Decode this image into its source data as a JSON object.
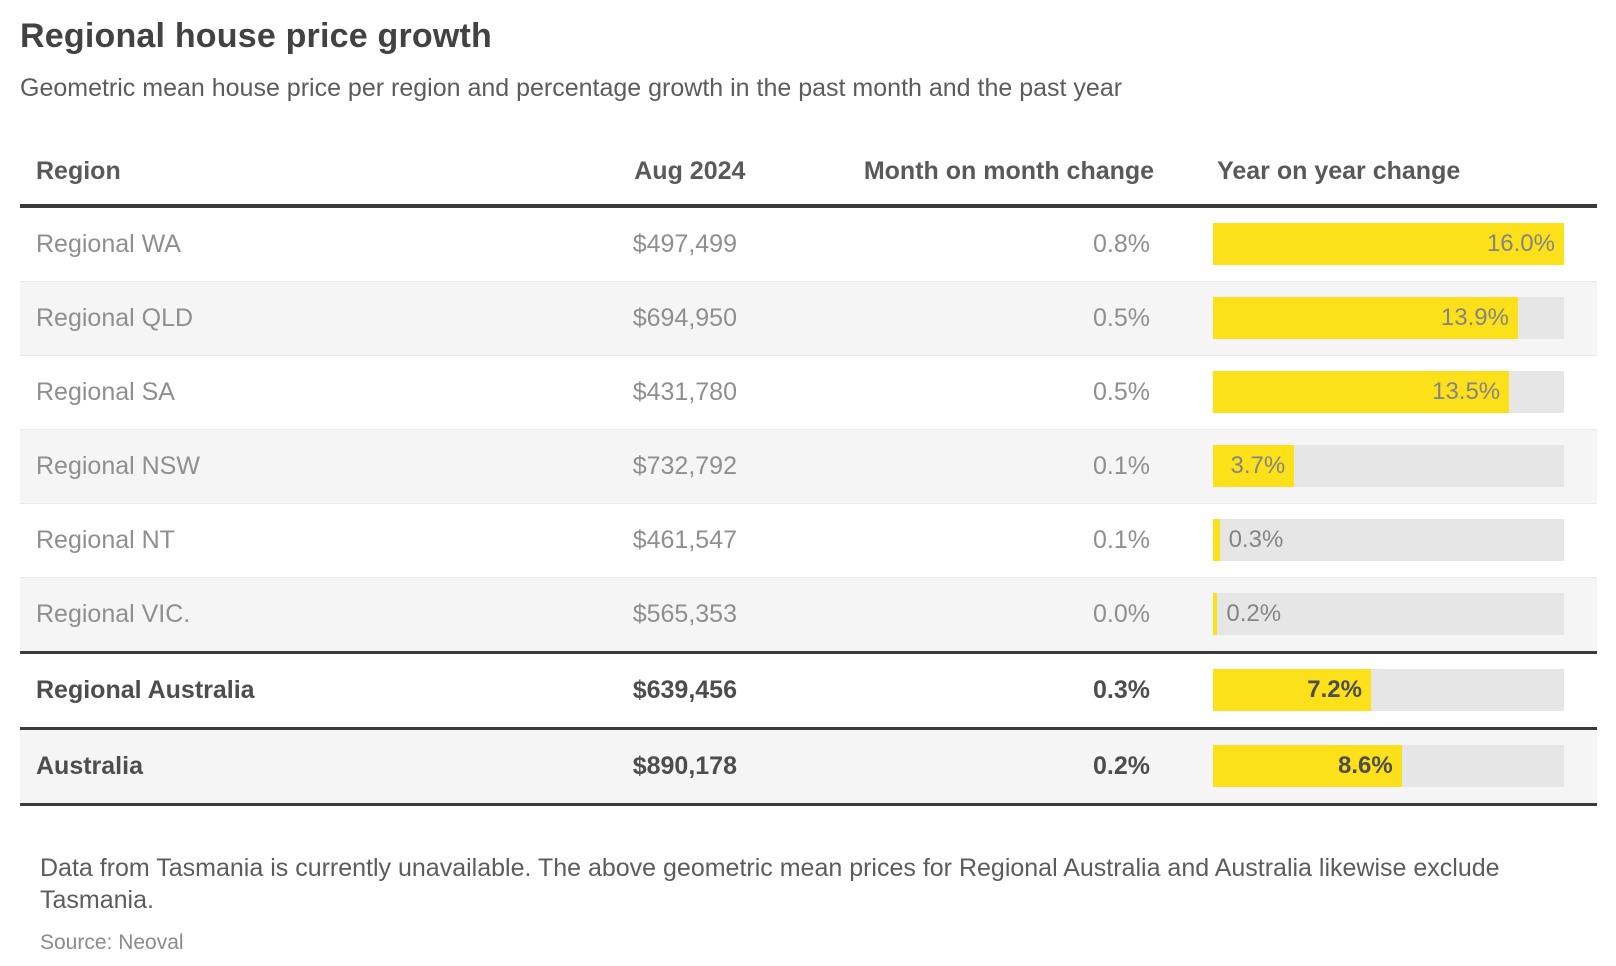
{
  "title": "Regional house price growth",
  "subtitle": "Geometric mean house price per region and percentage growth in the past month and the past year",
  "table": {
    "headers": {
      "region": "Region",
      "price": "Aug 2024",
      "mom": "Month on month change",
      "yoy": "Year on year change"
    },
    "bar_axis_max": 16.0,
    "rows": [
      {
        "region": "Regional WA",
        "price": "$497,499",
        "mom": "0.8%",
        "yoy": 16.0,
        "yoy_label": "16.0%",
        "emphasis": false
      },
      {
        "region": "Regional QLD",
        "price": "$694,950",
        "mom": "0.5%",
        "yoy": 13.9,
        "yoy_label": "13.9%",
        "emphasis": false
      },
      {
        "region": "Regional SA",
        "price": "$431,780",
        "mom": "0.5%",
        "yoy": 13.5,
        "yoy_label": "13.5%",
        "emphasis": false
      },
      {
        "region": "Regional NSW",
        "price": "$732,792",
        "mom": "0.1%",
        "yoy": 3.7,
        "yoy_label": "3.7%",
        "emphasis": false
      },
      {
        "region": "Regional NT",
        "price": "$461,547",
        "mom": "0.1%",
        "yoy": 0.3,
        "yoy_label": "0.3%",
        "emphasis": false
      },
      {
        "region": "Regional VIC.",
        "price": "$565,353",
        "mom": "0.0%",
        "yoy": 0.2,
        "yoy_label": "0.2%",
        "emphasis": false
      },
      {
        "region": "Regional Australia",
        "price": "$639,456",
        "mom": "0.3%",
        "yoy": 7.2,
        "yoy_label": "7.2%",
        "emphasis": true
      },
      {
        "region": "Australia",
        "price": "$890,178",
        "mom": "0.2%",
        "yoy": 8.6,
        "yoy_label": "8.6%",
        "emphasis": true
      }
    ]
  },
  "footnote": "Data from Tasmania is currently unavailable. The above geometric mean prices for Regional Australia and Australia likewise exclude Tasmania.",
  "source": "Source: Neoval",
  "colors": {
    "bar_fill": "#fbe01a",
    "bar_track": "#e6e6e6",
    "row_alt_bg": "#f5f5f5",
    "rule": "#3b3b3b"
  },
  "chart_data": {
    "type": "bar",
    "title": "Regional house price growth",
    "subtitle": "Geometric mean house price per region and percentage growth in the past month and the past year",
    "categories": [
      "Regional WA",
      "Regional QLD",
      "Regional SA",
      "Regional NSW",
      "Regional NT",
      "Regional VIC.",
      "Regional Australia",
      "Australia"
    ],
    "series": [
      {
        "name": "Aug 2024 geometric mean price",
        "values": [
          497499,
          694950,
          431780,
          732792,
          461547,
          565353,
          639456,
          890178
        ]
      },
      {
        "name": "Month on month change %",
        "values": [
          0.8,
          0.5,
          0.5,
          0.1,
          0.1,
          0.0,
          0.3,
          0.2
        ]
      },
      {
        "name": "Year on year change %",
        "values": [
          16.0,
          13.9,
          13.5,
          3.7,
          0.3,
          0.2,
          7.2,
          8.6
        ]
      }
    ],
    "bar_column": "Year on year change %",
    "xlim": [
      0,
      16.0
    ],
    "orientation": "horizontal",
    "grid": false,
    "legend": false,
    "annotations": [
      "Data from Tasmania is currently unavailable. The above geometric mean prices for Regional Australia and Australia likewise exclude Tasmania.",
      "Source: Neoval"
    ]
  }
}
